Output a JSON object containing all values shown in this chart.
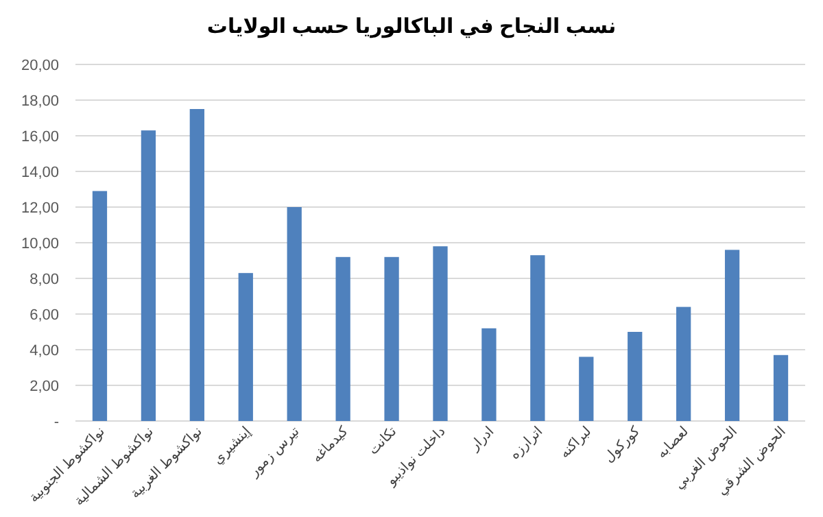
{
  "chart_data": {
    "type": "bar",
    "title": "نسب النجاح في الباكالوريا حسب الولايات",
    "categories": [
      "نواكشوط الجنوبية",
      "نواكشوط الشمالية",
      "نواكشوط الغربية",
      "إينشيري",
      "تيرس زمور",
      "كيدماغه",
      "تكانت",
      "داخلت نواذيبو",
      "ادرار",
      "اترارزه",
      "لبراكنه",
      "كوركول",
      "لعصابه",
      "الحوض الغربي",
      "الحوض الشرقي"
    ],
    "values": [
      12.9,
      16.3,
      17.5,
      8.3,
      12.0,
      9.2,
      9.2,
      9.8,
      5.2,
      9.3,
      3.6,
      5.0,
      6.4,
      9.6,
      3.7
    ],
    "color": "#4f81bd",
    "ylim": [
      0,
      20
    ],
    "yticks": [
      {
        "value": 0,
        "label": "-"
      },
      {
        "value": 2,
        "label": "2,00"
      },
      {
        "value": 4,
        "label": "4,00"
      },
      {
        "value": 6,
        "label": "6,00"
      },
      {
        "value": 8,
        "label": "8,00"
      },
      {
        "value": 10,
        "label": "10,00"
      },
      {
        "value": 12,
        "label": "12,00"
      },
      {
        "value": 14,
        "label": "14,00"
      },
      {
        "value": 16,
        "label": "16,00"
      },
      {
        "value": 18,
        "label": "18,00"
      },
      {
        "value": 20,
        "label": "20,00"
      }
    ],
    "grid": "y"
  }
}
